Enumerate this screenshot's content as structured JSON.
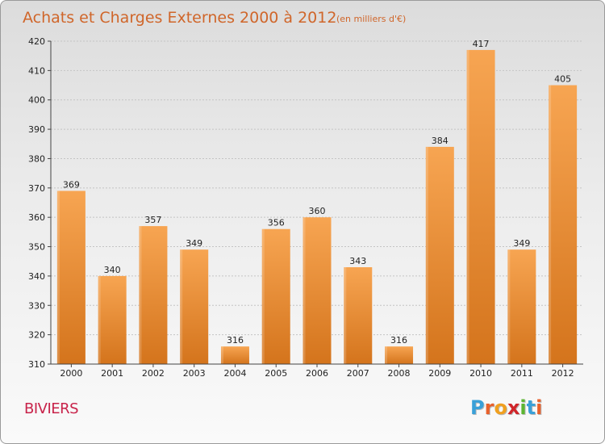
{
  "header": {
    "title": "Achats et Charges Externes 2000 à 2012",
    "unit": "(en milliers d'€)"
  },
  "footer": {
    "town": "BIVIERS",
    "logo_letters": [
      "P",
      "r",
      "o",
      "x",
      "i",
      "t",
      "i"
    ],
    "logo_colors": [
      "#3aa0d8",
      "#e8612c",
      "#f0a020",
      "#d0262a",
      "#5cb531",
      "#3aa0d8",
      "#e8612c"
    ]
  },
  "chart_data": {
    "type": "bar",
    "title": "Achats et Charges Externes 2000 à 2012",
    "subtitle": "(en milliers d'€)",
    "categories": [
      "2000",
      "2001",
      "2002",
      "2003",
      "2004",
      "2005",
      "2006",
      "2007",
      "2008",
      "2009",
      "2010",
      "2011",
      "2012"
    ],
    "values": [
      369,
      340,
      357,
      349,
      316,
      356,
      360,
      343,
      316,
      384,
      417,
      349,
      405
    ],
    "ylim": [
      310,
      420
    ],
    "yticks": [
      310,
      320,
      330,
      340,
      350,
      360,
      370,
      380,
      390,
      400,
      410,
      420
    ],
    "grid": true,
    "bar_color_top": "#f7a552",
    "bar_color_bottom": "#d4741c"
  }
}
